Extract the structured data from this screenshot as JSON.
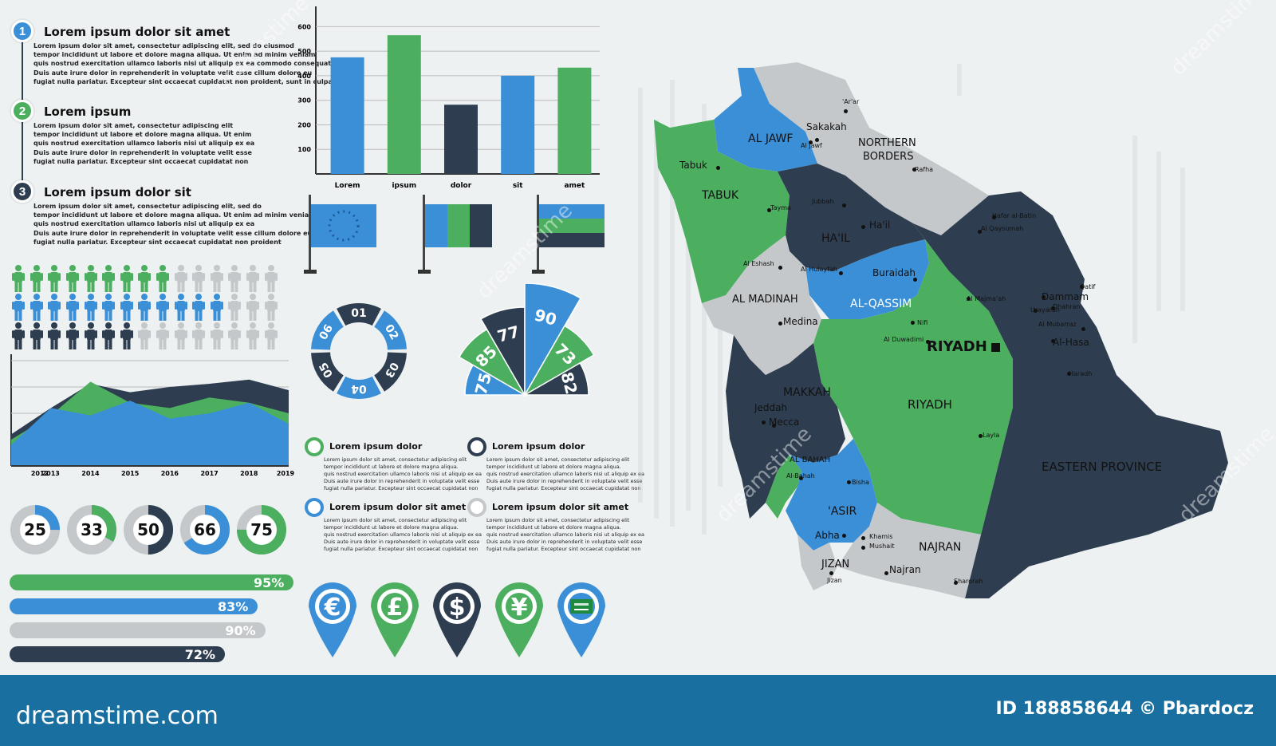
{
  "sections": [
    {
      "number": "1",
      "title": "Lorem ipsum dolor sit amet",
      "color": "#3a8fd6",
      "lines": [
        "Lorem ipsum dolor sit amet, consectetur adipiscing elit, sed do eiusmod",
        "tempor incididunt ut labore et dolore magna aliqua. Ut enim ad minim veniam",
        "quis nostrud exercitation ullamco laboris nisi ut aliquip ex ea commodo consequat.",
        "Duis aute irure dolor in reprehenderit in voluptate velit esse cillum dolore eu",
        "fugiat nulla pariatur. Excepteur sint occaecat cupidatat non proident, sunt in culpa"
      ]
    },
    {
      "number": "2",
      "title": "Lorem ipsum",
      "color": "#4caf5f",
      "lines": [
        "Lorem ipsum dolor sit amet, consectetur adipiscing elit",
        "tempor incididunt ut labore et dolore magna aliqua. Ut enim",
        "quis nostrud exercitation ullamco laboris nisi ut aliquip ex ea",
        "Duis aute irure dolor in reprehenderit in voluptate velit esse",
        "fugiat nulla pariatur. Excepteur sint occaecat cupidatat non"
      ]
    },
    {
      "number": "3",
      "title": "Lorem ipsum dolor sit",
      "color": "#2e3e50",
      "lines": [
        "Lorem ipsum dolor sit amet, consectetur adipiscing elit, sed do",
        "tempor incididunt ut labore et dolore magna aliqua. Ut enim ad minim veniam",
        "quis nostrud exercitation ullamco laboris nisi ut aliquip ex ea",
        "Duis aute irure dolor in reprehenderit in voluptate velit esse cillum dolore eu",
        "fugiat nulla pariatur. Excepteur sint occaecat cupidatat non proident"
      ]
    }
  ],
  "people_rows": [
    {
      "color": "#4caf5f",
      "filled": 9,
      "total": 15
    },
    {
      "color": "#3a8fd6",
      "filled": 12,
      "total": 15
    },
    {
      "color": "#2e3e50",
      "filled": 7,
      "total": 15
    }
  ],
  "colors": {
    "blue": "#3a8fd6",
    "green": "#4caf5f",
    "navy": "#2e3e50",
    "gray": "#c5c8cb"
  },
  "chart_data": [
    {
      "type": "bar",
      "categories": [
        "Lorem",
        "ipsum",
        "dolor",
        "sit",
        "amet"
      ],
      "values": [
        475,
        565,
        282,
        400,
        433
      ],
      "colors": [
        "#3a8fd6",
        "#4caf5f",
        "#2e3e50",
        "#3a8fd6",
        "#4caf5f"
      ],
      "ylim": [
        0,
        650
      ],
      "yticks": [
        "100",
        "200",
        "300",
        "400",
        "500",
        "600"
      ],
      "grid": true
    },
    {
      "type": "area",
      "x": [
        "2012",
        "2013",
        "2014",
        "2015",
        "2016",
        "2017",
        "2018",
        "2019"
      ],
      "series": [
        {
          "color": "#2e3e50",
          "values": [
            30,
            55,
            78,
            70,
            75,
            78,
            82,
            72
          ]
        },
        {
          "color": "#4caf5f",
          "values": [
            25,
            48,
            80,
            60,
            55,
            65,
            60,
            50
          ]
        },
        {
          "color": "#3a8fd6",
          "values": [
            20,
            55,
            48,
            62,
            45,
            50,
            60,
            40
          ]
        }
      ],
      "ylim": [
        0,
        100
      ]
    }
  ],
  "donuts": [
    {
      "label": "25",
      "value": 25,
      "color": "#3a8fd6"
    },
    {
      "label": "33",
      "value": 33,
      "color": "#4caf5f"
    },
    {
      "label": "50",
      "value": 50,
      "color": "#2e3e50"
    },
    {
      "label": "66",
      "value": 66,
      "color": "#3a8fd6"
    },
    {
      "label": "75",
      "value": 75,
      "color": "#4caf5f"
    }
  ],
  "progress_bars": [
    {
      "label": "95%",
      "value": 95,
      "color": "#4caf5f"
    },
    {
      "label": "83%",
      "value": 83,
      "color": "#3a8fd6"
    },
    {
      "label": "90%",
      "value": 90,
      "color": "#c5c8cb"
    },
    {
      "label": "72%",
      "value": 72,
      "color": "#2e3e50"
    }
  ],
  "cycle_labels": [
    "01",
    "02",
    "03",
    "04",
    "05",
    "06"
  ],
  "fan_labels": [
    "75",
    "85",
    "77",
    "90",
    "73",
    "82"
  ],
  "info_blocks": [
    {
      "title": "Lorem ipsum dolor",
      "color": "#4caf5f",
      "lines": [
        "Lorem ipsum dolor sit amet, consectetur adipiscing elit",
        "tempor incididunt ut labore et dolore magna aliqua.",
        "quis nostrud exercitation ullamco laboris nisi ut aliquip ex ea",
        "Duis aute irure dolor in reprehenderit in voluptate velit esse",
        "fugiat nulla pariatur. Excepteur sint occaecat cupidatat non"
      ]
    },
    {
      "title": "Lorem ipsum dolor",
      "color": "#2e3e50",
      "lines": [
        "Lorem ipsum dolor sit amet, consectetur adipiscing elit",
        "tempor incididunt ut labore et dolore magna aliqua.",
        "quis nostrud exercitation ullamco laboris nisi ut aliquip ex ea",
        "Duis aute irure dolor in reprehenderit in voluptate velit esse",
        "fugiat nulla pariatur. Excepteur sint occaecat cupidatat non"
      ]
    },
    {
      "title": "Lorem ipsum dolor sit amet",
      "color": "#3a8fd6",
      "lines": [
        "Lorem ipsum dolor sit amet, consectetur adipiscing elit",
        "tempor incididunt ut labore et dolore magna aliqua.",
        "quis nostrud exercitation ullamco laboris nisi ut aliquip ex ea",
        "Duis aute irure dolor in reprehenderit in voluptate velit esse",
        "fugiat nulla pariatur. Excepteur sint occaecat cupidatat non"
      ]
    },
    {
      "title": "Lorem ipsum dolor sit amet",
      "color": "#c5c8cb",
      "lines": [
        "Lorem ipsum dolor sit amet, consectetur adipiscing elit",
        "tempor incididunt ut labore et dolore magna aliqua.",
        "quis nostrud exercitation ullamco laboris nisi ut aliquip ex ea",
        "Duis aute irure dolor in reprehenderit in voluptate velit esse",
        "fugiat nulla pariatur. Excepteur sint occaecat cupidatat non"
      ]
    }
  ],
  "pins": [
    {
      "symbol": "€",
      "color": "#3a8fd6",
      "icon": "euro-icon"
    },
    {
      "symbol": "£",
      "color": "#4caf5f",
      "icon": "pound-icon"
    },
    {
      "symbol": "$",
      "color": "#2e3e50",
      "icon": "dollar-icon"
    },
    {
      "symbol": "¥",
      "color": "#4caf5f",
      "icon": "yen-icon"
    },
    {
      "symbol": "",
      "color": "#3a8fd6",
      "icon": "saudi-flag-icon"
    }
  ],
  "map": {
    "regions": [
      {
        "name": "AL JAWF"
      },
      {
        "name": "NORTHERN"
      },
      {
        "name": "BORDERS"
      },
      {
        "name": "TABUK"
      },
      {
        "name": "HA'IL"
      },
      {
        "name": "AL MADINAH"
      },
      {
        "name": "AL-QASSIM"
      },
      {
        "name": "RIYADH"
      },
      {
        "name": "MAKKAH"
      },
      {
        "name": "AL BAHAH"
      },
      {
        "name": "'ASIR"
      },
      {
        "name": "NAJRAN"
      },
      {
        "name": "JIZAN"
      },
      {
        "name": "EASTERN PROVINCE"
      }
    ],
    "capital": "RIYADH",
    "cities": [
      "'Ar'ar",
      "Sakakah",
      "Al Jawf",
      "Rafha",
      "Tabuk",
      "Tayma",
      "Jubbah",
      "Ha'il",
      "Al Eshash",
      "Al Hulayfah",
      "Buraidah",
      "Nifi",
      "Al Majma'ah",
      "Al Duwadimi",
      "Medina",
      "Jeddah",
      "Mecca",
      "Al-Bahah",
      "Bisha",
      "Abha",
      "Khamis",
      "Mushait",
      "Najran",
      "Jizan",
      "Sharorah",
      "Layla",
      "Dammam",
      "Dhahran",
      "Qatif",
      "Urayarah",
      "Al Mubarraz",
      "Al-Hasa",
      "Haradh",
      "Al Qaysumah",
      "Hafar al-Batin"
    ]
  },
  "footer": {
    "brand": "dreamstime.com",
    "credit": "ID 188858644 © Pbardocz"
  },
  "watermark": "dreamstime"
}
